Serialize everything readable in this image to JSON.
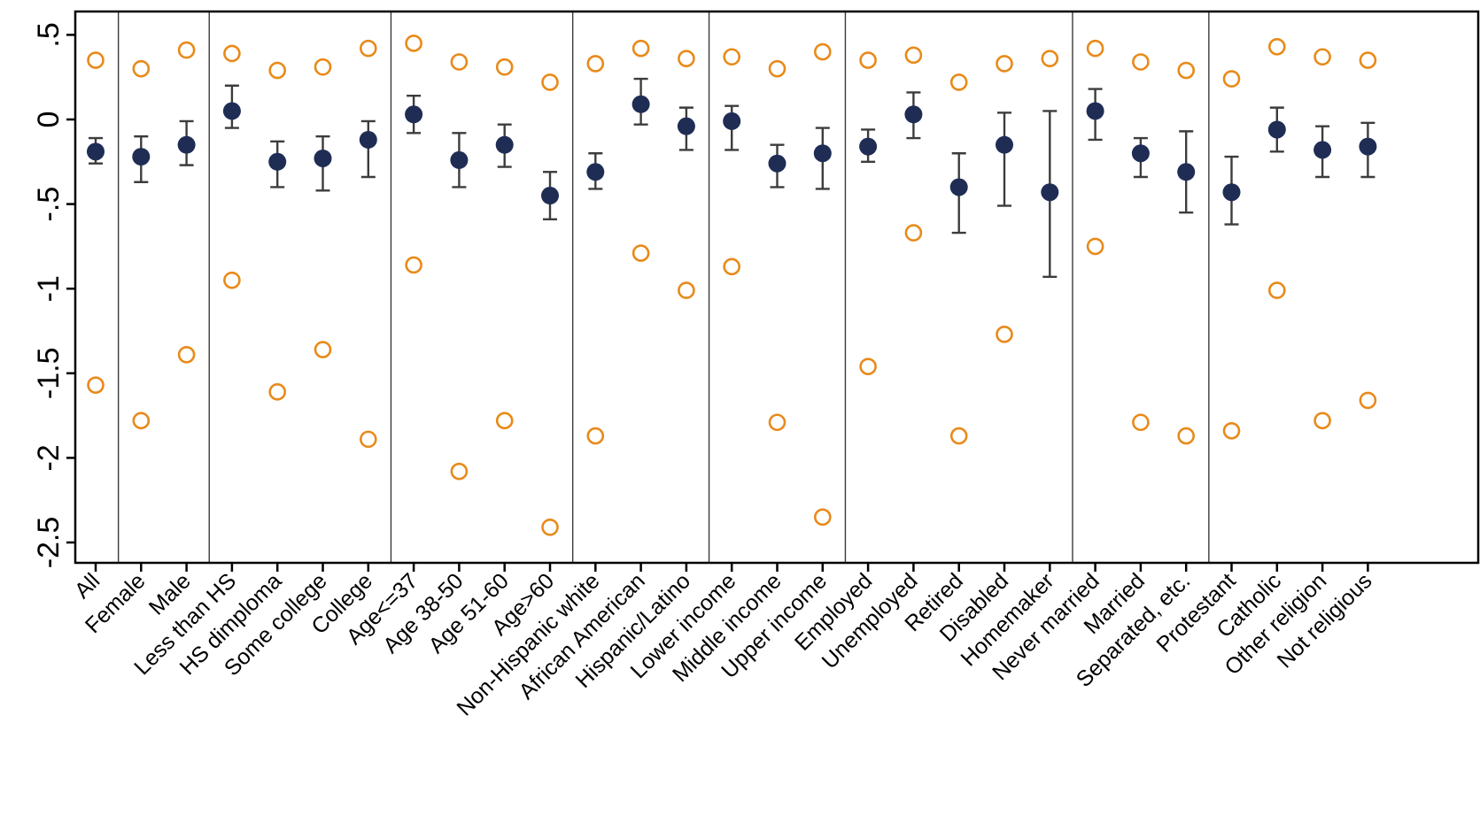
{
  "chart_data": {
    "type": "scatter",
    "title": "",
    "xlabel": "",
    "ylabel": "",
    "ylim": [
      -2.6,
      0.62
    ],
    "yticks": [
      0.5,
      0,
      -0.5,
      -1,
      -1.5,
      -2,
      -2.5
    ],
    "ytick_labels": [
      ".5",
      "0",
      "-.5",
      "-1",
      "-1.5",
      "-2",
      "-2.5"
    ],
    "grid": false,
    "legend": "none",
    "colors": {
      "estimate": "#1f2d55",
      "ci": "#3c3c3c",
      "outer": "#e88a1a"
    },
    "categories": [
      "All",
      "Female",
      "Male",
      "Less than HS",
      "HS dimploma",
      "Some college",
      "College",
      "Age<=37",
      "Age 38-50",
      "Age 51-60",
      "Age>60",
      "Non-Hispanic white",
      "African American",
      "Hispanic/Latino",
      "Lower income",
      "Middle income",
      "Upper income",
      "Employed",
      "Unemployed",
      "Retired",
      "Disabled",
      "Homemaker",
      "Never married",
      "Married",
      "Separated, etc.",
      "Protestant",
      "Catholic",
      "Other religion",
      "Not religious"
    ],
    "group_boundaries_after": [
      "All",
      "Male",
      "College",
      "Age>60",
      "Hispanic/Latino",
      "Upper income",
      "Homemaker",
      "Separated, etc."
    ],
    "series": [
      {
        "role": "estimate",
        "values": [
          -0.19,
          -0.22,
          -0.15,
          0.05,
          -0.25,
          -0.23,
          -0.12,
          0.03,
          -0.24,
          -0.15,
          -0.45,
          -0.31,
          0.09,
          -0.04,
          -0.01,
          -0.26,
          -0.2,
          -0.16,
          0.03,
          -0.4,
          -0.15,
          -0.43,
          0.05,
          -0.2,
          -0.31,
          -0.43,
          -0.06,
          -0.18,
          -0.16
        ]
      },
      {
        "role": "ci_lower",
        "values": [
          -0.26,
          -0.37,
          -0.27,
          -0.05,
          -0.4,
          -0.42,
          -0.34,
          -0.08,
          -0.4,
          -0.28,
          -0.59,
          -0.41,
          -0.03,
          -0.18,
          -0.18,
          -0.4,
          -0.41,
          -0.25,
          -0.11,
          -0.67,
          -0.51,
          -0.93,
          -0.12,
          -0.34,
          -0.55,
          -0.62,
          -0.19,
          -0.34,
          -0.34
        ]
      },
      {
        "role": "ci_upper",
        "values": [
          -0.11,
          -0.1,
          -0.01,
          0.2,
          -0.13,
          -0.1,
          -0.01,
          0.14,
          -0.08,
          -0.03,
          -0.31,
          -0.2,
          0.24,
          0.07,
          0.08,
          -0.15,
          -0.05,
          -0.06,
          0.16,
          -0.2,
          0.04,
          0.05,
          0.18,
          -0.11,
          -0.07,
          -0.22,
          0.07,
          -0.04,
          -0.02
        ]
      },
      {
        "role": "outer_upper",
        "values": [
          0.35,
          0.3,
          0.41,
          0.39,
          0.29,
          0.31,
          0.42,
          0.45,
          0.34,
          0.31,
          0.22,
          0.33,
          0.42,
          0.36,
          0.37,
          0.3,
          0.4,
          0.35,
          0.38,
          0.22,
          0.33,
          0.36,
          0.42,
          0.34,
          0.29,
          0.24,
          0.43,
          0.37,
          0.35
        ]
      },
      {
        "role": "outer_lower",
        "values": [
          -1.57,
          -1.78,
          -1.39,
          -0.95,
          -1.61,
          -1.36,
          -1.89,
          -0.86,
          -2.08,
          -1.78,
          -2.41,
          -1.87,
          -0.79,
          -1.01,
          -0.87,
          -1.79,
          -2.35,
          -1.46,
          -0.67,
          -1.87,
          -1.27,
          null,
          -0.75,
          -1.79,
          -1.87,
          -1.84,
          -1.01,
          -1.78,
          -1.66
        ]
      }
    ]
  }
}
